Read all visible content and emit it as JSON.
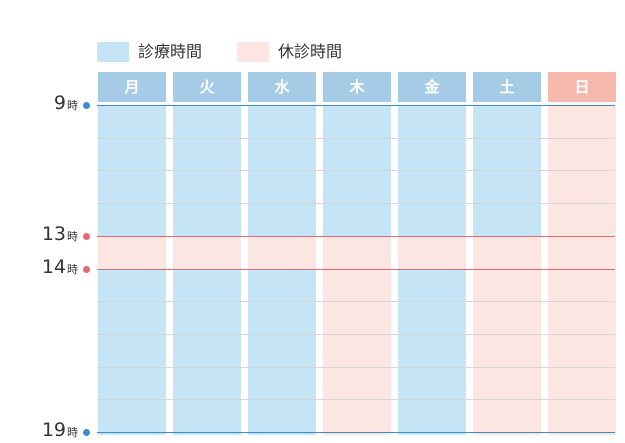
{
  "legend": {
    "consult": {
      "label": "診療時間",
      "color": "#c5e4f6"
    },
    "closed": {
      "label": "休診時間",
      "color": "#fce6e1"
    }
  },
  "colors": {
    "header_open": "#a5cbe6",
    "header_closed": "#f5b9ad",
    "open_fill": "#c5e4f6",
    "closed_fill": "#fce6e1",
    "boundary_line": "#3d8bc8",
    "break_line": "#e16a73",
    "hour_line": "#d6d6d6"
  },
  "days": [
    {
      "label": "月",
      "hours": "open",
      "lunch_break": true
    },
    {
      "label": "火",
      "hours": "open",
      "lunch_break": true
    },
    {
      "label": "水",
      "hours": "open",
      "lunch_break": true
    },
    {
      "label": "木",
      "hours": "morning_only",
      "lunch_break": true
    },
    {
      "label": "金",
      "hours": "open",
      "lunch_break": true
    },
    {
      "label": "土",
      "hours": "morning_only",
      "lunch_break": true
    },
    {
      "label": "日",
      "hours": "closed",
      "lunch_break": false
    }
  ],
  "time_axis": {
    "start_hour": 9,
    "end_hour": 19,
    "unit": "時",
    "labels": [
      {
        "hour": "9",
        "unit": "時",
        "value": 9,
        "kind": "boundary"
      },
      {
        "hour": "13",
        "unit": "時",
        "value": 13,
        "kind": "break"
      },
      {
        "hour": "14",
        "unit": "時",
        "value": 14,
        "kind": "break"
      },
      {
        "hour": "19",
        "unit": "時",
        "value": 19,
        "kind": "boundary"
      }
    ]
  }
}
